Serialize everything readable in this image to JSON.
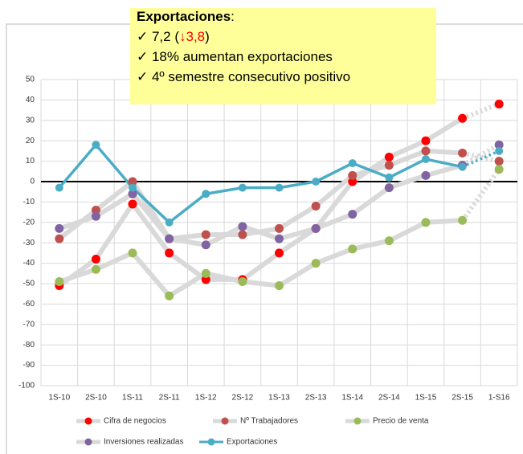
{
  "chart_data": {
    "type": "line",
    "categories": [
      "1S-10",
      "2S-10",
      "1S-11",
      "2S-11",
      "1S-12",
      "2S-12",
      "1S-13",
      "2S-13",
      "1S-14",
      "2S-14",
      "1S-15",
      "2S-15",
      "1-S16"
    ],
    "series": [
      {
        "name": "Cifra de negocios",
        "color": "#ff0000",
        "line_color": "#d9d9d9",
        "values": [
          -51,
          -38,
          -11,
          -35,
          -48,
          -48,
          -35,
          -23,
          0,
          12,
          20,
          31,
          38
        ]
      },
      {
        "name": "Nº Trabajadores",
        "color": "#c0504d",
        "line_color": "#d9d9d9",
        "values": [
          -28,
          -14,
          0,
          -28,
          -26,
          -26,
          -23,
          -12,
          3,
          8,
          15,
          14,
          10
        ]
      },
      {
        "name": "Precio de venta",
        "color": "#9bbb59",
        "line_color": "#d9d9d9",
        "values": [
          -49,
          -43,
          -35,
          -56,
          -45,
          -49,
          -51,
          -40,
          -33,
          -29,
          -20,
          -19,
          6
        ]
      },
      {
        "name": "Inversiones realizadas",
        "color": "#8064a2",
        "line_color": "#d9d9d9",
        "values": [
          -23,
          -17,
          -6,
          -28,
          -31,
          -22,
          -28,
          -23,
          -16,
          -3,
          3,
          8,
          18
        ]
      },
      {
        "name": "Exportaciones",
        "color": "#4bacc6",
        "line_color": "#4bacc6",
        "values": [
          -3,
          18,
          -3,
          -20,
          -6,
          -3,
          -3,
          0,
          9,
          2,
          11,
          7.2,
          15
        ]
      }
    ],
    "ylim": [
      -100,
      50
    ],
    "yticks": [
      -100,
      -90,
      -80,
      -70,
      -60,
      -50,
      -40,
      -30,
      -20,
      -10,
      0,
      10,
      20,
      30,
      40,
      50
    ],
    "grid": true,
    "dotted_last_segment": true,
    "legend": "bottom",
    "annotation": {
      "title": "Exportaciones",
      "title_suffix": ":",
      "lines": [
        [
          "✓ 7,2 (",
          "↓3,8",
          ")"
        ],
        [
          "✓ 18% aumentan exportaciones"
        ],
        [
          "✓ 4º semestre consecutivo positivo"
        ]
      ]
    }
  }
}
